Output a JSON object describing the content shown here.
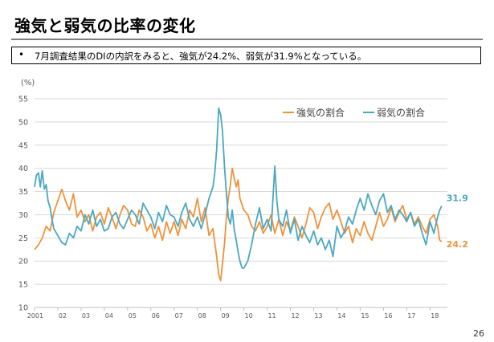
{
  "slide": {
    "title": "強気と弱気の比率の変化",
    "bullet_mark": "•",
    "bullet_text": "7月調査結果のDIの内訳をみると、強気が24.2%、弱気が31.9%となっている。",
    "page_number": "26"
  },
  "chart_data": {
    "type": "line",
    "ylabel": "(%)",
    "ylim": [
      10,
      55
    ],
    "yticks": [
      10,
      15,
      20,
      25,
      30,
      35,
      40,
      45,
      50,
      55
    ],
    "xlim": [
      2001.0,
      2018.75
    ],
    "xtick_labels": [
      {
        "label": "2001",
        "x": 2001.1
      },
      {
        "label": "02",
        "x": 2002.0
      },
      {
        "label": "03",
        "x": 2003.0
      },
      {
        "label": "04",
        "x": 2004.0
      },
      {
        "label": "05",
        "x": 2005.0
      },
      {
        "label": "06",
        "x": 2006.0
      },
      {
        "label": "07",
        "x": 2007.0
      },
      {
        "label": "08",
        "x": 2008.0
      },
      {
        "label": "09",
        "x": 2009.0
      },
      {
        "label": "10",
        "x": 2010.0
      },
      {
        "label": "11",
        "x": 2011.0
      },
      {
        "label": "12",
        "x": 2012.0
      },
      {
        "label": "13",
        "x": 2013.0
      },
      {
        "label": "14",
        "x": 2014.0
      },
      {
        "label": "15",
        "x": 2015.0
      },
      {
        "label": "16",
        "x": 2016.0
      },
      {
        "label": "17",
        "x": 2017.0
      },
      {
        "label": "18",
        "x": 2018.0
      }
    ],
    "grid": true,
    "legend_position": "top-right",
    "series": [
      {
        "name": "強気の割合",
        "color": "#f0923c",
        "end_label": "24.2",
        "points": [
          [
            2001.0,
            22.5
          ],
          [
            2001.17,
            23.5
          ],
          [
            2001.33,
            25.0
          ],
          [
            2001.5,
            27.5
          ],
          [
            2001.67,
            26.5
          ],
          [
            2001.83,
            30.5
          ],
          [
            2002.0,
            33.0
          ],
          [
            2002.17,
            35.5
          ],
          [
            2002.33,
            33.0
          ],
          [
            2002.5,
            31.0
          ],
          [
            2002.67,
            34.5
          ],
          [
            2002.83,
            29.5
          ],
          [
            2003.0,
            31.0
          ],
          [
            2003.17,
            28.5
          ],
          [
            2003.33,
            30.0
          ],
          [
            2003.5,
            26.5
          ],
          [
            2003.67,
            29.5
          ],
          [
            2003.83,
            30.5
          ],
          [
            2004.0,
            28.0
          ],
          [
            2004.17,
            31.5
          ],
          [
            2004.33,
            29.5
          ],
          [
            2004.5,
            27.0
          ],
          [
            2004.67,
            30.0
          ],
          [
            2004.83,
            32.0
          ],
          [
            2005.0,
            31.0
          ],
          [
            2005.17,
            28.0
          ],
          [
            2005.33,
            27.5
          ],
          [
            2005.5,
            31.0
          ],
          [
            2005.67,
            29.5
          ],
          [
            2005.83,
            26.5
          ],
          [
            2006.0,
            28.0
          ],
          [
            2006.17,
            25.0
          ],
          [
            2006.33,
            27.5
          ],
          [
            2006.5,
            24.5
          ],
          [
            2006.67,
            28.5
          ],
          [
            2006.83,
            26.0
          ],
          [
            2007.0,
            28.5
          ],
          [
            2007.17,
            25.5
          ],
          [
            2007.33,
            29.0
          ],
          [
            2007.5,
            27.0
          ],
          [
            2007.67,
            31.0
          ],
          [
            2007.83,
            29.5
          ],
          [
            2008.0,
            33.5
          ],
          [
            2008.17,
            28.5
          ],
          [
            2008.33,
            31.5
          ],
          [
            2008.5,
            25.5
          ],
          [
            2008.67,
            27.0
          ],
          [
            2008.83,
            21.0
          ],
          [
            2008.92,
            17.0
          ],
          [
            2009.0,
            15.8
          ],
          [
            2009.08,
            19.5
          ],
          [
            2009.17,
            24.0
          ],
          [
            2009.25,
            29.5
          ],
          [
            2009.33,
            33.5
          ],
          [
            2009.42,
            36.5
          ],
          [
            2009.5,
            40.0
          ],
          [
            2009.58,
            38.0
          ],
          [
            2009.67,
            36.0
          ],
          [
            2009.75,
            37.5
          ],
          [
            2009.83,
            33.5
          ],
          [
            2010.0,
            31.0
          ],
          [
            2010.17,
            30.0
          ],
          [
            2010.33,
            27.5
          ],
          [
            2010.5,
            26.5
          ],
          [
            2010.67,
            28.5
          ],
          [
            2010.83,
            26.0
          ],
          [
            2011.0,
            27.5
          ],
          [
            2011.17,
            30.0
          ],
          [
            2011.33,
            26.0
          ],
          [
            2011.5,
            29.0
          ],
          [
            2011.67,
            25.5
          ],
          [
            2011.83,
            28.5
          ],
          [
            2012.0,
            26.5
          ],
          [
            2012.17,
            29.5
          ],
          [
            2012.33,
            27.5
          ],
          [
            2012.5,
            25.0
          ],
          [
            2012.67,
            28.0
          ],
          [
            2012.83,
            31.5
          ],
          [
            2013.0,
            30.5
          ],
          [
            2013.17,
            27.0
          ],
          [
            2013.33,
            29.5
          ],
          [
            2013.5,
            31.5
          ],
          [
            2013.67,
            32.5
          ],
          [
            2013.83,
            29.0
          ],
          [
            2014.0,
            31.0
          ],
          [
            2014.17,
            28.5
          ],
          [
            2014.33,
            26.0
          ],
          [
            2014.5,
            27.5
          ],
          [
            2014.67,
            24.0
          ],
          [
            2014.83,
            27.0
          ],
          [
            2015.0,
            25.5
          ],
          [
            2015.17,
            28.5
          ],
          [
            2015.33,
            26.0
          ],
          [
            2015.5,
            24.5
          ],
          [
            2015.67,
            27.5
          ],
          [
            2015.83,
            30.5
          ],
          [
            2016.0,
            27.5
          ],
          [
            2016.17,
            29.0
          ],
          [
            2016.33,
            31.5
          ],
          [
            2016.5,
            28.5
          ],
          [
            2016.67,
            30.5
          ],
          [
            2016.83,
            32.0
          ],
          [
            2017.0,
            29.0
          ],
          [
            2017.17,
            30.5
          ],
          [
            2017.33,
            28.0
          ],
          [
            2017.5,
            29.5
          ],
          [
            2017.67,
            27.5
          ],
          [
            2017.83,
            26.0
          ],
          [
            2018.0,
            29.0
          ],
          [
            2018.17,
            30.0
          ],
          [
            2018.33,
            27.5
          ],
          [
            2018.42,
            24.5
          ],
          [
            2018.5,
            24.2
          ]
        ]
      },
      {
        "name": "弱気の割合",
        "color": "#4aa8bf",
        "end_label": "31.9",
        "points": [
          [
            2001.0,
            36.0
          ],
          [
            2001.08,
            38.5
          ],
          [
            2001.17,
            39.0
          ],
          [
            2001.25,
            36.0
          ],
          [
            2001.33,
            39.5
          ],
          [
            2001.42,
            35.5
          ],
          [
            2001.5,
            36.5
          ],
          [
            2001.58,
            33.0
          ],
          [
            2001.67,
            31.5
          ],
          [
            2001.75,
            29.0
          ],
          [
            2001.83,
            27.0
          ],
          [
            2002.0,
            25.5
          ],
          [
            2002.17,
            24.0
          ],
          [
            2002.33,
            23.5
          ],
          [
            2002.5,
            26.0
          ],
          [
            2002.67,
            25.0
          ],
          [
            2002.83,
            27.5
          ],
          [
            2003.0,
            26.5
          ],
          [
            2003.17,
            30.0
          ],
          [
            2003.33,
            28.0
          ],
          [
            2003.5,
            31.0
          ],
          [
            2003.67,
            27.5
          ],
          [
            2003.83,
            29.0
          ],
          [
            2004.0,
            26.5
          ],
          [
            2004.17,
            27.0
          ],
          [
            2004.33,
            29.5
          ],
          [
            2004.5,
            30.5
          ],
          [
            2004.67,
            28.0
          ],
          [
            2004.83,
            27.0
          ],
          [
            2005.0,
            29.0
          ],
          [
            2005.17,
            31.0
          ],
          [
            2005.33,
            30.0
          ],
          [
            2005.5,
            28.0
          ],
          [
            2005.67,
            32.5
          ],
          [
            2005.83,
            31.0
          ],
          [
            2006.0,
            29.5
          ],
          [
            2006.17,
            27.0
          ],
          [
            2006.33,
            30.5
          ],
          [
            2006.5,
            28.5
          ],
          [
            2006.67,
            32.0
          ],
          [
            2006.83,
            30.0
          ],
          [
            2007.0,
            29.5
          ],
          [
            2007.17,
            27.5
          ],
          [
            2007.33,
            30.5
          ],
          [
            2007.5,
            32.5
          ],
          [
            2007.67,
            29.0
          ],
          [
            2007.83,
            27.5
          ],
          [
            2008.0,
            29.5
          ],
          [
            2008.17,
            27.0
          ],
          [
            2008.33,
            30.0
          ],
          [
            2008.5,
            33.5
          ],
          [
            2008.67,
            36.0
          ],
          [
            2008.75,
            39.0
          ],
          [
            2008.83,
            44.0
          ],
          [
            2008.92,
            53.0
          ],
          [
            2009.0,
            51.5
          ],
          [
            2009.08,
            48.0
          ],
          [
            2009.17,
            40.0
          ],
          [
            2009.25,
            34.5
          ],
          [
            2009.33,
            29.5
          ],
          [
            2009.42,
            28.0
          ],
          [
            2009.5,
            31.0
          ],
          [
            2009.58,
            27.0
          ],
          [
            2009.67,
            24.5
          ],
          [
            2009.75,
            22.0
          ],
          [
            2009.83,
            20.0
          ],
          [
            2009.92,
            18.5
          ],
          [
            2010.0,
            18.5
          ],
          [
            2010.17,
            20.0
          ],
          [
            2010.33,
            23.5
          ],
          [
            2010.5,
            28.0
          ],
          [
            2010.67,
            31.5
          ],
          [
            2010.83,
            27.0
          ],
          [
            2011.0,
            29.0
          ],
          [
            2011.17,
            26.5
          ],
          [
            2011.33,
            40.5
          ],
          [
            2011.42,
            33.0
          ],
          [
            2011.5,
            29.0
          ],
          [
            2011.67,
            27.5
          ],
          [
            2011.83,
            31.0
          ],
          [
            2012.0,
            26.0
          ],
          [
            2012.17,
            29.0
          ],
          [
            2012.33,
            24.5
          ],
          [
            2012.5,
            27.5
          ],
          [
            2012.67,
            25.5
          ],
          [
            2012.83,
            24.0
          ],
          [
            2013.0,
            26.5
          ],
          [
            2013.17,
            23.5
          ],
          [
            2013.33,
            25.0
          ],
          [
            2013.5,
            22.5
          ],
          [
            2013.67,
            24.5
          ],
          [
            2013.83,
            21.0
          ],
          [
            2014.0,
            27.5
          ],
          [
            2014.17,
            25.0
          ],
          [
            2014.33,
            26.5
          ],
          [
            2014.5,
            29.5
          ],
          [
            2014.67,
            28.0
          ],
          [
            2014.83,
            31.0
          ],
          [
            2015.0,
            33.5
          ],
          [
            2015.17,
            31.0
          ],
          [
            2015.33,
            34.5
          ],
          [
            2015.5,
            32.0
          ],
          [
            2015.67,
            30.0
          ],
          [
            2015.83,
            33.0
          ],
          [
            2016.0,
            34.5
          ],
          [
            2016.17,
            30.5
          ],
          [
            2016.33,
            32.0
          ],
          [
            2016.5,
            29.0
          ],
          [
            2016.67,
            31.0
          ],
          [
            2016.83,
            30.0
          ],
          [
            2017.0,
            28.5
          ],
          [
            2017.17,
            30.5
          ],
          [
            2017.33,
            27.5
          ],
          [
            2017.5,
            29.0
          ],
          [
            2017.67,
            26.0
          ],
          [
            2017.83,
            23.5
          ],
          [
            2018.0,
            28.5
          ],
          [
            2018.17,
            26.0
          ],
          [
            2018.33,
            29.5
          ],
          [
            2018.42,
            31.0
          ],
          [
            2018.5,
            31.9
          ]
        ]
      }
    ]
  }
}
